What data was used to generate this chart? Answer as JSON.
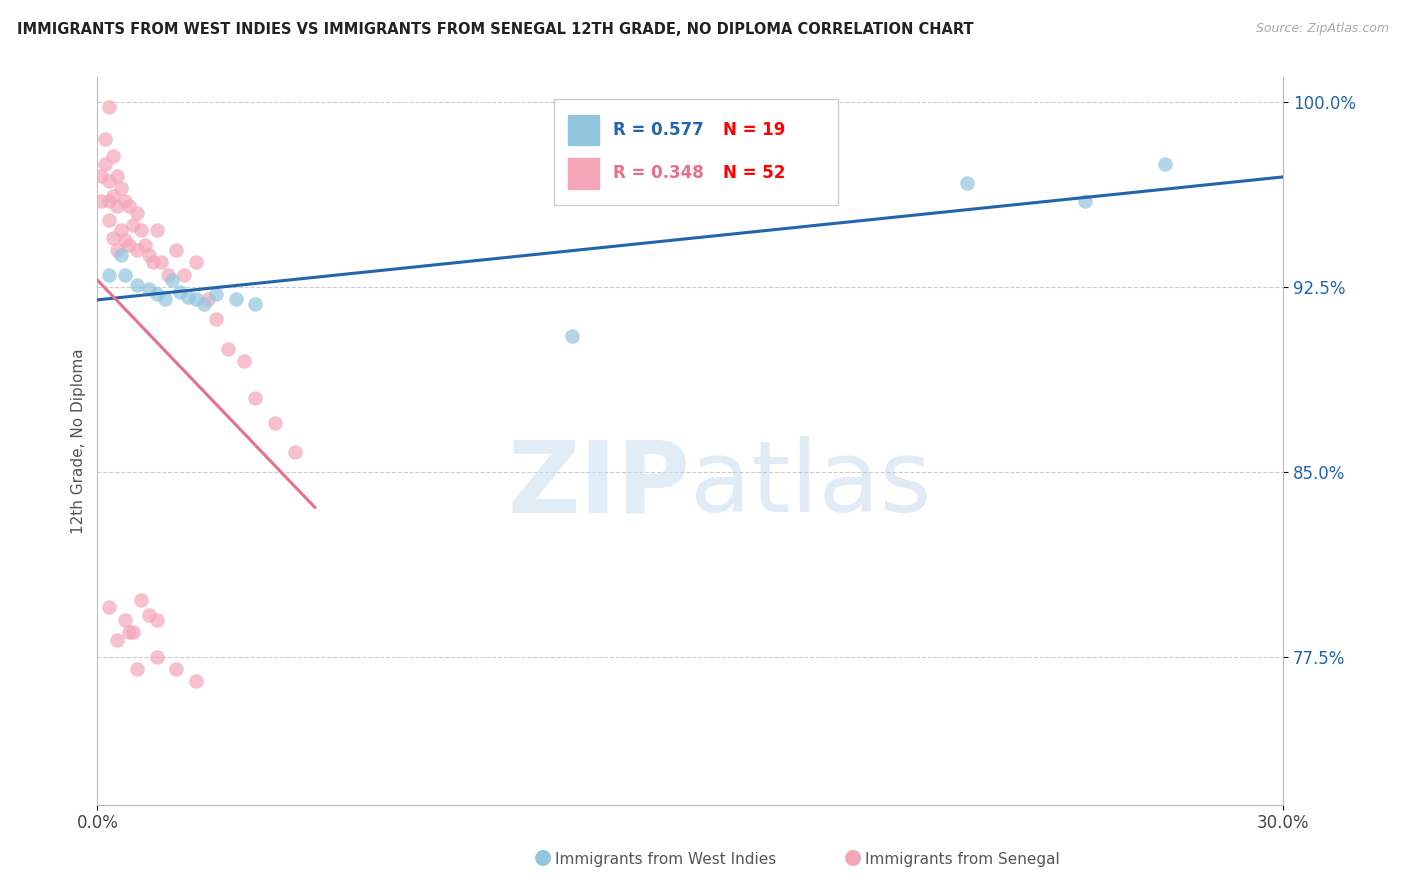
{
  "title": "IMMIGRANTS FROM WEST INDIES VS IMMIGRANTS FROM SENEGAL 12TH GRADE, NO DIPLOMA CORRELATION CHART",
  "source": "Source: ZipAtlas.com",
  "ylabel": "12th Grade, No Diploma",
  "xlim": [
    0.0,
    0.3
  ],
  "ylim": [
    0.715,
    1.01
  ],
  "y_ticks": [
    0.775,
    0.85,
    0.925,
    1.0
  ],
  "y_tick_labels": [
    "77.5%",
    "85.0%",
    "92.5%",
    "100.0%"
  ],
  "x_ticks": [
    0.0,
    0.3
  ],
  "x_tick_labels": [
    "0.0%",
    "30.0%"
  ],
  "watermark_zip": "ZIP",
  "watermark_atlas": "atlas",
  "legend_blue_r": "R = 0.577",
  "legend_blue_n": "N = 19",
  "legend_pink_r": "R = 0.348",
  "legend_pink_n": "N = 52",
  "blue_color": "#92C5DE",
  "pink_color": "#F4A6B8",
  "blue_line_color": "#2166AC",
  "pink_line_color": "#E8708A",
  "label_blue": "Immigrants from West Indies",
  "label_pink": "Immigrants from Senegal",
  "wi_x": [
    0.003,
    0.006,
    0.007,
    0.01,
    0.013,
    0.015,
    0.017,
    0.019,
    0.021,
    0.023,
    0.025,
    0.027,
    0.03,
    0.035,
    0.04,
    0.12,
    0.22,
    0.25,
    0.27
  ],
  "wi_y": [
    0.93,
    0.938,
    0.93,
    0.926,
    0.924,
    0.922,
    0.92,
    0.928,
    0.923,
    0.921,
    0.92,
    0.918,
    0.922,
    0.92,
    0.918,
    0.905,
    0.967,
    0.96,
    0.975
  ],
  "sn_x": [
    0.001,
    0.001,
    0.002,
    0.002,
    0.003,
    0.003,
    0.003,
    0.004,
    0.004,
    0.004,
    0.005,
    0.005,
    0.005,
    0.006,
    0.006,
    0.007,
    0.007,
    0.008,
    0.008,
    0.009,
    0.01,
    0.01,
    0.011,
    0.012,
    0.013,
    0.014,
    0.015,
    0.016,
    0.018,
    0.02,
    0.022,
    0.025,
    0.028,
    0.03,
    0.033,
    0.037,
    0.04,
    0.045,
    0.05,
    0.003,
    0.005,
    0.007,
    0.009,
    0.011,
    0.013,
    0.015,
    0.01,
    0.015,
    0.008,
    0.02,
    0.025,
    0.003
  ],
  "sn_y": [
    0.97,
    0.96,
    0.985,
    0.975,
    0.968,
    0.96,
    0.952,
    0.978,
    0.962,
    0.945,
    0.97,
    0.958,
    0.94,
    0.965,
    0.948,
    0.96,
    0.944,
    0.958,
    0.942,
    0.95,
    0.955,
    0.94,
    0.948,
    0.942,
    0.938,
    0.935,
    0.948,
    0.935,
    0.93,
    0.94,
    0.93,
    0.935,
    0.92,
    0.912,
    0.9,
    0.895,
    0.88,
    0.87,
    0.858,
    0.795,
    0.782,
    0.79,
    0.785,
    0.798,
    0.792,
    0.79,
    0.77,
    0.775,
    0.785,
    0.77,
    0.765,
    0.998
  ]
}
